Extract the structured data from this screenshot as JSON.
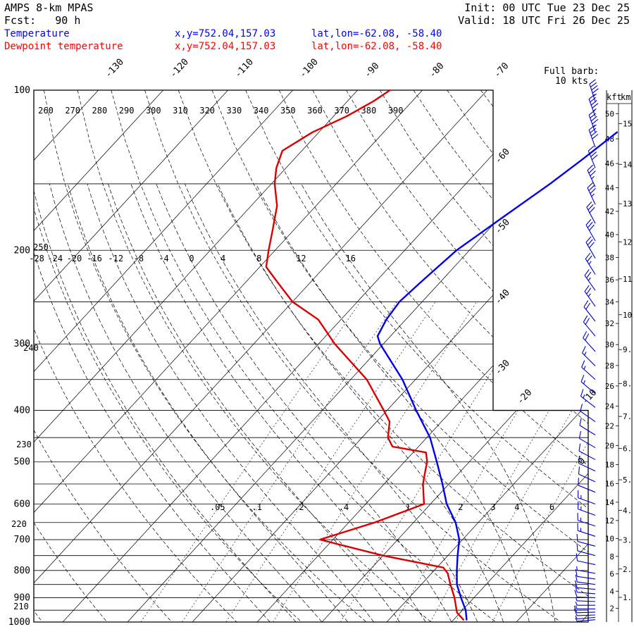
{
  "header": {
    "model": "AMPS 8-km MPAS",
    "fcst": "Fcst:   90 h",
    "init": "Init: 00 UTC Tue 23 Dec 25",
    "valid": "Valid: 18 UTC Fri 26 Dec 25"
  },
  "legend": {
    "temperature": {
      "label": "Temperature",
      "xy": "x,y=752.04,157.03",
      "latlon": "lat,lon=-62.08, -58.40"
    },
    "dewpoint": {
      "label": "Dewpoint temperature",
      "xy": "x,y=752.04,157.03",
      "latlon": "lat,lon=-62.08, -58.40"
    }
  },
  "barb_note": {
    "line1": "Full barb:",
    "line2": "10 kts"
  },
  "axis_right": {
    "kft_header": "kft",
    "km_header": "km"
  },
  "chart_data": {
    "type": "skewt_log_p",
    "title": "AMPS 8-km MPAS sounding, Fcst 90 h, valid 18 UTC Fri 26 Dec 25",
    "pressure_axis_hpa": [
      100,
      200,
      300,
      400,
      500,
      600,
      700,
      800,
      900,
      1000
    ],
    "pressure_line_step_hpa": 50,
    "isotherm_step_c": 10,
    "isotherm_labels_top_c": [
      -130,
      -120,
      -110,
      -100,
      -90,
      -80,
      -70
    ],
    "isotherm_labels_right_c": [
      -60,
      -50,
      -40,
      -30,
      -20,
      -10,
      0
    ],
    "dry_adiabat_labels_top_k": [
      260,
      270,
      280,
      290,
      300,
      310,
      320,
      330,
      340,
      350,
      360,
      370,
      380,
      390
    ],
    "dry_adiabat_labels_left_k": [
      250,
      240,
      230,
      220,
      210
    ],
    "moist_adiabat_labels_c": [
      -28,
      -24,
      -20,
      -16,
      -12,
      -8,
      -4,
      0,
      4,
      8,
      12,
      16
    ],
    "mixing_ratio_labels_gkg": [
      ".05",
      ".1",
      ".2",
      ".4",
      "1",
      "2",
      "3",
      "4",
      "6"
    ],
    "temperature_profile_p_c": [
      [
        990,
        2
      ],
      [
        950,
        0.5
      ],
      [
        900,
        -2
      ],
      [
        850,
        -4.5
      ],
      [
        800,
        -6.5
      ],
      [
        750,
        -8.5
      ],
      [
        700,
        -10.5
      ],
      [
        650,
        -13.5
      ],
      [
        600,
        -17.5
      ],
      [
        550,
        -21
      ],
      [
        500,
        -25
      ],
      [
        450,
        -29.5
      ],
      [
        400,
        -35.5
      ],
      [
        350,
        -42
      ],
      [
        300,
        -50.5
      ],
      [
        290,
        -52
      ],
      [
        270,
        -53
      ],
      [
        250,
        -53.5
      ],
      [
        230,
        -53
      ],
      [
        200,
        -52
      ],
      [
        175,
        -49.7
      ],
      [
        150,
        -47
      ],
      [
        135,
        -45.5
      ],
      [
        120,
        -44
      ]
    ],
    "dewpoint_profile_p_c": [
      [
        990,
        1.5
      ],
      [
        960,
        -0.5
      ],
      [
        900,
        -3
      ],
      [
        850,
        -5.5
      ],
      [
        810,
        -7.5
      ],
      [
        790,
        -9
      ],
      [
        750,
        -20
      ],
      [
        700,
        -32
      ],
      [
        650,
        -26
      ],
      [
        600,
        -21
      ],
      [
        550,
        -24
      ],
      [
        520,
        -25.5
      ],
      [
        500,
        -26.5
      ],
      [
        480,
        -28
      ],
      [
        468,
        -34
      ],
      [
        450,
        -36
      ],
      [
        420,
        -38
      ],
      [
        400,
        -40.5
      ],
      [
        350,
        -47.5
      ],
      [
        300,
        -57.5
      ],
      [
        270,
        -63.5
      ],
      [
        250,
        -70
      ],
      [
        230,
        -75
      ],
      [
        215,
        -79
      ],
      [
        200,
        -81
      ],
      [
        185,
        -83
      ],
      [
        165,
        -86
      ],
      [
        150,
        -89.5
      ],
      [
        140,
        -91.5
      ],
      [
        130,
        -93
      ],
      [
        120,
        -91
      ],
      [
        112,
        -88
      ],
      [
        105,
        -86
      ],
      [
        100,
        -85
      ]
    ],
    "winds_p_spd_dir": [
      [
        105,
        45,
        342
      ],
      [
        112,
        45,
        340
      ],
      [
        120,
        45,
        340
      ],
      [
        128,
        40,
        340
      ],
      [
        140,
        40,
        338
      ],
      [
        152,
        35,
        335
      ],
      [
        164,
        35,
        335
      ],
      [
        178,
        30,
        332
      ],
      [
        192,
        30,
        330
      ],
      [
        207,
        30,
        330
      ],
      [
        222,
        25,
        328
      ],
      [
        238,
        25,
        325
      ],
      [
        255,
        25,
        325
      ],
      [
        272,
        20,
        322
      ],
      [
        290,
        20,
        320
      ],
      [
        310,
        20,
        318
      ],
      [
        330,
        15,
        315
      ],
      [
        350,
        15,
        312
      ],
      [
        372,
        15,
        310
      ],
      [
        395,
        15,
        308
      ],
      [
        420,
        10,
        305
      ],
      [
        445,
        10,
        302
      ],
      [
        470,
        10,
        300
      ],
      [
        495,
        10,
        298
      ],
      [
        520,
        10,
        295
      ],
      [
        545,
        10,
        295
      ],
      [
        570,
        10,
        292
      ],
      [
        600,
        15,
        290
      ],
      [
        630,
        15,
        290
      ],
      [
        660,
        15,
        288
      ],
      [
        690,
        15,
        288
      ],
      [
        720,
        10,
        285
      ],
      [
        750,
        10,
        285
      ],
      [
        780,
        10,
        282
      ],
      [
        810,
        5,
        280
      ],
      [
        830,
        10,
        278
      ],
      [
        850,
        10,
        278
      ],
      [
        868,
        10,
        275
      ],
      [
        885,
        10,
        275
      ],
      [
        900,
        10,
        272
      ],
      [
        915,
        5,
        272
      ],
      [
        930,
        5,
        270
      ],
      [
        945,
        5,
        270
      ],
      [
        958,
        10,
        268
      ],
      [
        970,
        10,
        268
      ],
      [
        980,
        5,
        265
      ],
      [
        990,
        5,
        265
      ]
    ],
    "full_barb_kts": 10,
    "km_ticks": [
      1,
      2,
      3,
      4,
      5,
      6,
      7,
      8,
      9,
      10,
      11,
      12,
      13,
      14,
      15
    ],
    "kft_ticks": [
      2,
      4,
      6,
      8,
      10,
      12,
      14,
      16,
      18,
      20,
      22,
      24,
      26,
      28,
      30,
      32,
      34,
      36,
      38,
      40,
      42,
      44,
      46,
      48,
      50
    ],
    "colors": {
      "temperature": "#0000ee",
      "dewpoint": "#dd0000",
      "wind": "#0000cc",
      "grid": "#000000"
    }
  }
}
